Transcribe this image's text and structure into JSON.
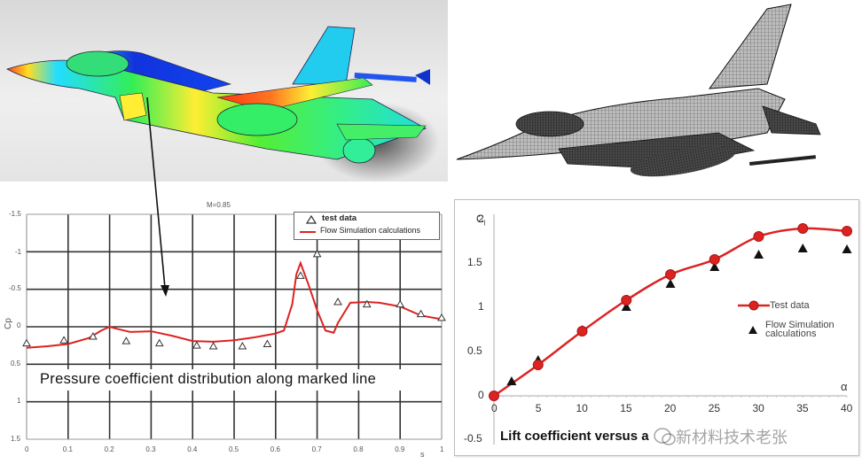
{
  "images": {
    "cfd_render": {
      "label": "cfd-pressure-colored-aircraft",
      "colors": [
        "#1e3cff",
        "#00e5ff",
        "#33e633",
        "#ffff33",
        "#ff3311"
      ]
    },
    "mesh_render": {
      "label": "wireframe-mesh-aircraft"
    }
  },
  "chart_data": [
    {
      "type": "line",
      "title": "M=0.85",
      "caption": "Pressure coefficient distribution along marked line",
      "xlabel": "s",
      "ylabel": "Cp",
      "xlim": [
        0,
        1
      ],
      "ylim": [
        1.5,
        -1.5
      ],
      "y_inverted": true,
      "grid": true,
      "x_ticks": [
        "0",
        "0.1",
        "0.2",
        "0.3",
        "0.4",
        "0.5",
        "0.6",
        "0.7",
        "0.8",
        "0.9",
        "1"
      ],
      "y_ticks": [
        "-1.5",
        "-1",
        "-0.5",
        "0",
        "0.5",
        "1",
        "1.5"
      ],
      "legend": {
        "position": "upper right",
        "entries": [
          "test data",
          "Flow Simulation calculations"
        ]
      },
      "series": [
        {
          "name": "test data",
          "marker": "open-triangle",
          "color": "#333333",
          "x": [
            0.0,
            0.09,
            0.16,
            0.24,
            0.32,
            0.41,
            0.45,
            0.52,
            0.58,
            0.66,
            0.7,
            0.75,
            0.82,
            0.9,
            0.95,
            1.0
          ],
          "y": [
            0.22,
            0.18,
            0.13,
            0.19,
            0.22,
            0.25,
            0.26,
            0.26,
            0.23,
            -0.68,
            -0.97,
            -0.33,
            -0.3,
            -0.3,
            -0.17,
            -0.12
          ]
        },
        {
          "name": "Flow Simulation calculations",
          "line": "solid",
          "color": "#dd2222",
          "x": [
            0.0,
            0.05,
            0.1,
            0.15,
            0.18,
            0.2,
            0.22,
            0.25,
            0.3,
            0.35,
            0.4,
            0.45,
            0.5,
            0.55,
            0.6,
            0.62,
            0.64,
            0.65,
            0.66,
            0.68,
            0.7,
            0.72,
            0.74,
            0.75,
            0.78,
            0.82,
            0.85,
            0.9,
            0.95,
            1.0
          ],
          "y": [
            0.28,
            0.26,
            0.23,
            0.15,
            0.05,
            0.0,
            0.03,
            0.07,
            0.06,
            0.12,
            0.19,
            0.2,
            0.18,
            0.14,
            0.09,
            0.05,
            -0.3,
            -0.7,
            -0.85,
            -0.55,
            -0.22,
            0.05,
            0.08,
            -0.05,
            -0.32,
            -0.33,
            -0.32,
            -0.27,
            -0.15,
            -0.1
          ]
        }
      ]
    },
    {
      "type": "line",
      "title": "",
      "caption": "Lift coefficient versus angle of attack",
      "xlabel": "α",
      "ylabel": "Cl",
      "xlim": [
        0,
        40
      ],
      "ylim": [
        -0.5,
        2
      ],
      "grid": false,
      "x_ticks": [
        "0",
        "5",
        "10",
        "15",
        "20",
        "25",
        "30",
        "35",
        "40"
      ],
      "y_ticks": [
        "-0.5",
        "0",
        "0.5",
        "1",
        "1.5",
        "2"
      ],
      "legend": {
        "position": "center right",
        "entries": [
          "Test data",
          "Flow Simulation calculations"
        ]
      },
      "series": [
        {
          "name": "Test data",
          "marker": "filled-circle",
          "line": "solid",
          "color": "#dd2222",
          "x": [
            0,
            5,
            10,
            15,
            20,
            25,
            30,
            35,
            40
          ],
          "y": [
            0.0,
            0.35,
            0.73,
            1.08,
            1.37,
            1.54,
            1.8,
            1.89,
            1.86
          ]
        },
        {
          "name": "Flow Simulation calculations",
          "marker": "filled-triangle",
          "color": "#111111",
          "x": [
            2,
            5,
            10,
            15,
            20,
            25,
            30,
            35,
            40
          ],
          "y": [
            0.16,
            0.4,
            0.74,
            1.0,
            1.26,
            1.45,
            1.59,
            1.66,
            1.65
          ]
        }
      ]
    }
  ],
  "left_chart": {
    "mach_label": "M=0.85",
    "y_axis_label": "Cp",
    "x_axis_label": "s",
    "x_ticks": [
      "0",
      "0.1",
      "0.2",
      "0.3",
      "0.4",
      "0.5",
      "0.6",
      "0.7",
      "0.8",
      "0.9",
      "1"
    ],
    "y_ticks": [
      "-1.5",
      "-1",
      "-0.5",
      "0",
      "0.5",
      "1",
      "1.5"
    ],
    "legend": {
      "item1": "test data",
      "item2": "Flow Simulation calculations"
    },
    "caption": "Pressure coefficient distribution along marked line"
  },
  "right_chart": {
    "y_axis_label": "C",
    "y_axis_sub": "l",
    "x_axis_label": "α",
    "x_ticks": [
      "0",
      "5",
      "10",
      "15",
      "20",
      "25",
      "30",
      "35",
      "40"
    ],
    "y_ticks": [
      "2",
      "1.5",
      "1",
      "0.5",
      "0",
      "-0.5"
    ],
    "legend": {
      "item1": "Test data",
      "item2_line1": "Flow Simulation",
      "item2_line2": "calculations"
    },
    "caption": "Lift coefficient versus a"
  },
  "watermark": "新材料技术老张"
}
